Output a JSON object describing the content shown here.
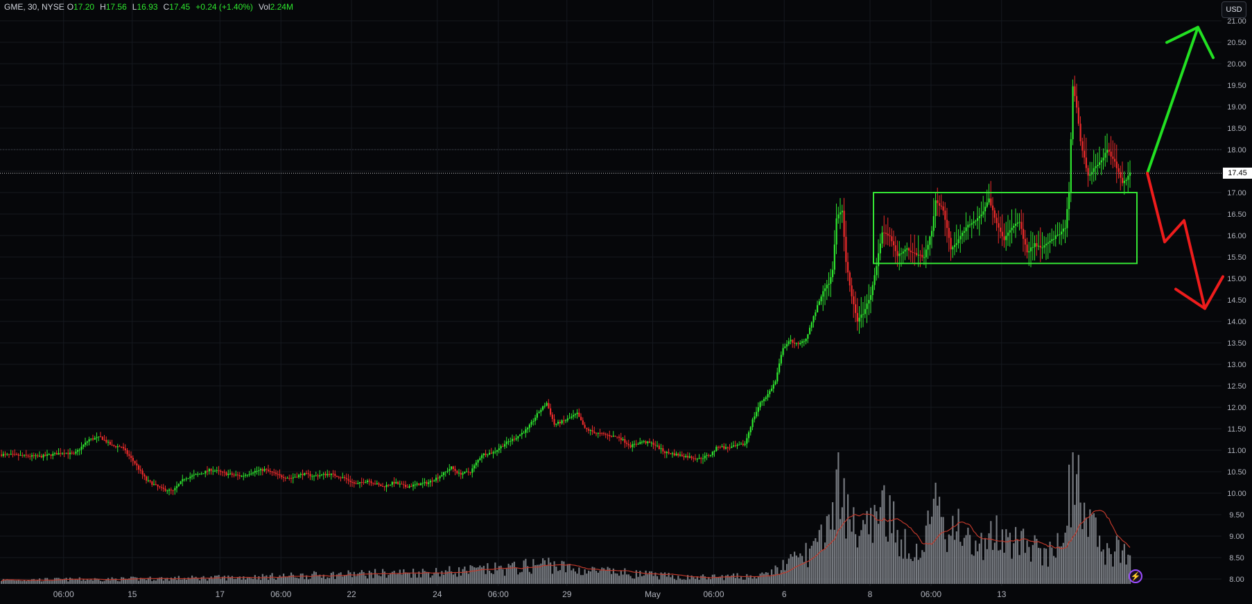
{
  "header": {
    "symbol": "GME, 30, NYSE",
    "open_label": "O",
    "open": "17.20",
    "high_label": "H",
    "high": "17.56",
    "low_label": "L",
    "low": "16.93",
    "close_label": "C",
    "close": "17.45",
    "change": "+0.24 (+1.40%)",
    "vol_label": "Vol",
    "vol": "2.24M"
  },
  "currency_button": "USD",
  "last_price_label": "17.45",
  "colors": {
    "background": "#06070a",
    "up": "#2ee82e",
    "down": "#ef2b2b",
    "volume": "#8a8d94",
    "volume_ma": "#c0392b",
    "box": "#35e635",
    "arrow_up": "#22e022",
    "arrow_down": "#ee1c1c",
    "wick": "#4f5fd6"
  },
  "icons": {
    "alert": "lightning-icon"
  },
  "chart_data": {
    "type": "candlestick",
    "symbol": "GME",
    "interval": "30",
    "exchange": "NYSE",
    "y_axis": {
      "range": [
        8.0,
        21.0
      ],
      "ticks": [
        "8.00",
        "8.50",
        "9.00",
        "9.50",
        "10.00",
        "10.50",
        "11.00",
        "11.50",
        "12.00",
        "12.50",
        "13.00",
        "13.50",
        "14.00",
        "14.50",
        "15.00",
        "15.50",
        "16.00",
        "16.50",
        "17.00",
        "17.50",
        "18.00",
        "18.50",
        "19.00",
        "19.50",
        "20.00",
        "20.50",
        "21.00"
      ],
      "currency": "USD"
    },
    "x_axis": {
      "ticks": [
        "06:00",
        "15",
        "17",
        "06:00",
        "22",
        "24",
        "06:00",
        "29",
        "May",
        "06:00",
        "6",
        "8",
        "06:00",
        "13"
      ]
    },
    "last_price": 17.45,
    "ohlc_last": {
      "open": 17.2,
      "high": 17.56,
      "low": 16.93,
      "close": 17.45,
      "change": 0.24,
      "change_pct": 1.4,
      "volume": "2.24M"
    },
    "price_path": [
      [
        0,
        10.9
      ],
      [
        20,
        10.85
      ],
      [
        33,
        10.95
      ],
      [
        38,
        10.9
      ],
      [
        46,
        11.25
      ],
      [
        52,
        11.3
      ],
      [
        58,
        11.1
      ],
      [
        63,
        11.08
      ],
      [
        70,
        10.7
      ],
      [
        76,
        10.3
      ],
      [
        84,
        10.1
      ],
      [
        90,
        10.05
      ],
      [
        96,
        10.35
      ],
      [
        104,
        10.45
      ],
      [
        110,
        10.55
      ],
      [
        118,
        10.45
      ],
      [
        126,
        10.4
      ],
      [
        132,
        10.5
      ],
      [
        138,
        10.55
      ],
      [
        146,
        10.4
      ],
      [
        152,
        10.35
      ],
      [
        158,
        10.45
      ],
      [
        164,
        10.4
      ],
      [
        172,
        10.45
      ],
      [
        180,
        10.35
      ],
      [
        186,
        10.2
      ],
      [
        192,
        10.3
      ],
      [
        200,
        10.15
      ],
      [
        206,
        10.25
      ],
      [
        212,
        10.15
      ],
      [
        218,
        10.2
      ],
      [
        224,
        10.25
      ],
      [
        230,
        10.4
      ],
      [
        236,
        10.6
      ],
      [
        240,
        10.45
      ],
      [
        246,
        10.5
      ],
      [
        252,
        10.9
      ],
      [
        258,
        10.95
      ],
      [
        264,
        11.15
      ],
      [
        270,
        11.3
      ],
      [
        276,
        11.5
      ],
      [
        282,
        11.9
      ],
      [
        286,
        12.1
      ],
      [
        290,
        11.6
      ],
      [
        296,
        11.7
      ],
      [
        302,
        11.85
      ],
      [
        306,
        11.5
      ],
      [
        312,
        11.4
      ],
      [
        318,
        11.35
      ],
      [
        324,
        11.3
      ],
      [
        330,
        11.1
      ],
      [
        336,
        11.2
      ],
      [
        342,
        11.15
      ],
      [
        348,
        10.95
      ],
      [
        354,
        10.9
      ],
      [
        360,
        10.85
      ],
      [
        366,
        10.8
      ],
      [
        372,
        10.9
      ],
      [
        376,
        11.1
      ],
      [
        380,
        11.05
      ],
      [
        386,
        11.1
      ],
      [
        390,
        11.15
      ],
      [
        394,
        11.7
      ],
      [
        398,
        12.1
      ],
      [
        402,
        12.3
      ],
      [
        406,
        12.6
      ],
      [
        410,
        13.4
      ],
      [
        414,
        13.55
      ],
      [
        418,
        13.45
      ],
      [
        422,
        13.6
      ],
      [
        426,
        14.1
      ],
      [
        430,
        14.6
      ],
      [
        434,
        14.9
      ],
      [
        436,
        15.2
      ],
      [
        438,
        16.4
      ],
      [
        441,
        16.6
      ],
      [
        443,
        15.4
      ],
      [
        446,
        14.6
      ],
      [
        449,
        14.0
      ],
      [
        452,
        14.2
      ],
      [
        456,
        14.6
      ],
      [
        459,
        15.3
      ],
      [
        462,
        16.1
      ],
      [
        466,
        16.0
      ],
      [
        470,
        15.5
      ],
      [
        474,
        15.7
      ],
      [
        478,
        15.6
      ],
      [
        484,
        15.5
      ],
      [
        488,
        16.1
      ],
      [
        490,
        16.8
      ],
      [
        494,
        16.6
      ],
      [
        498,
        15.7
      ],
      [
        502,
        15.9
      ],
      [
        506,
        16.2
      ],
      [
        510,
        16.3
      ],
      [
        514,
        16.5
      ],
      [
        518,
        16.85
      ],
      [
        522,
        16.3
      ],
      [
        526,
        15.9
      ],
      [
        530,
        16.2
      ],
      [
        534,
        16.3
      ],
      [
        538,
        15.6
      ],
      [
        542,
        15.8
      ],
      [
        546,
        15.7
      ],
      [
        550,
        15.9
      ],
      [
        554,
        16.0
      ],
      [
        558,
        16.2
      ],
      [
        560,
        17.0
      ],
      [
        562,
        19.5
      ],
      [
        564,
        19.0
      ],
      [
        566,
        18.2
      ],
      [
        568,
        17.8
      ],
      [
        570,
        17.4
      ],
      [
        574,
        17.6
      ],
      [
        578,
        17.8
      ],
      [
        580,
        18.0
      ],
      [
        584,
        17.7
      ],
      [
        588,
        17.2
      ],
      [
        592,
        17.45
      ]
    ],
    "volume_path": [
      [
        0,
        0.5
      ],
      [
        60,
        0.6
      ],
      [
        120,
        0.8
      ],
      [
        180,
        1.2
      ],
      [
        240,
        1.6
      ],
      [
        270,
        2.0
      ],
      [
        286,
        2.6
      ],
      [
        300,
        1.8
      ],
      [
        360,
        0.8
      ],
      [
        400,
        1.0
      ],
      [
        420,
        3.5
      ],
      [
        432,
        5.5
      ],
      [
        436,
        8.5
      ],
      [
        440,
        14.0
      ],
      [
        444,
        9.0
      ],
      [
        450,
        6.0
      ],
      [
        460,
        7.5
      ],
      [
        464,
        10.0
      ],
      [
        470,
        6.0
      ],
      [
        480,
        4.5
      ],
      [
        486,
        7.0
      ],
      [
        490,
        9.0
      ],
      [
        496,
        6.0
      ],
      [
        502,
        8.5
      ],
      [
        510,
        5.0
      ],
      [
        520,
        6.0
      ],
      [
        530,
        5.5
      ],
      [
        540,
        4.5
      ],
      [
        552,
        4.0
      ],
      [
        558,
        6.0
      ],
      [
        562,
        15.0
      ],
      [
        566,
        13.0
      ],
      [
        570,
        9.0
      ],
      [
        580,
        4.0
      ],
      [
        590,
        4.5
      ]
    ],
    "annotations": [
      {
        "type": "rectangle",
        "price_top": 17.0,
        "price_bottom": 15.35
      },
      {
        "type": "arrow",
        "direction": "up",
        "from_price": 17.45,
        "to_price": 20.85
      },
      {
        "type": "arrow",
        "direction": "down",
        "from_price": 17.45,
        "to_price": 14.3
      }
    ],
    "grid": true,
    "legend": "top-left"
  }
}
